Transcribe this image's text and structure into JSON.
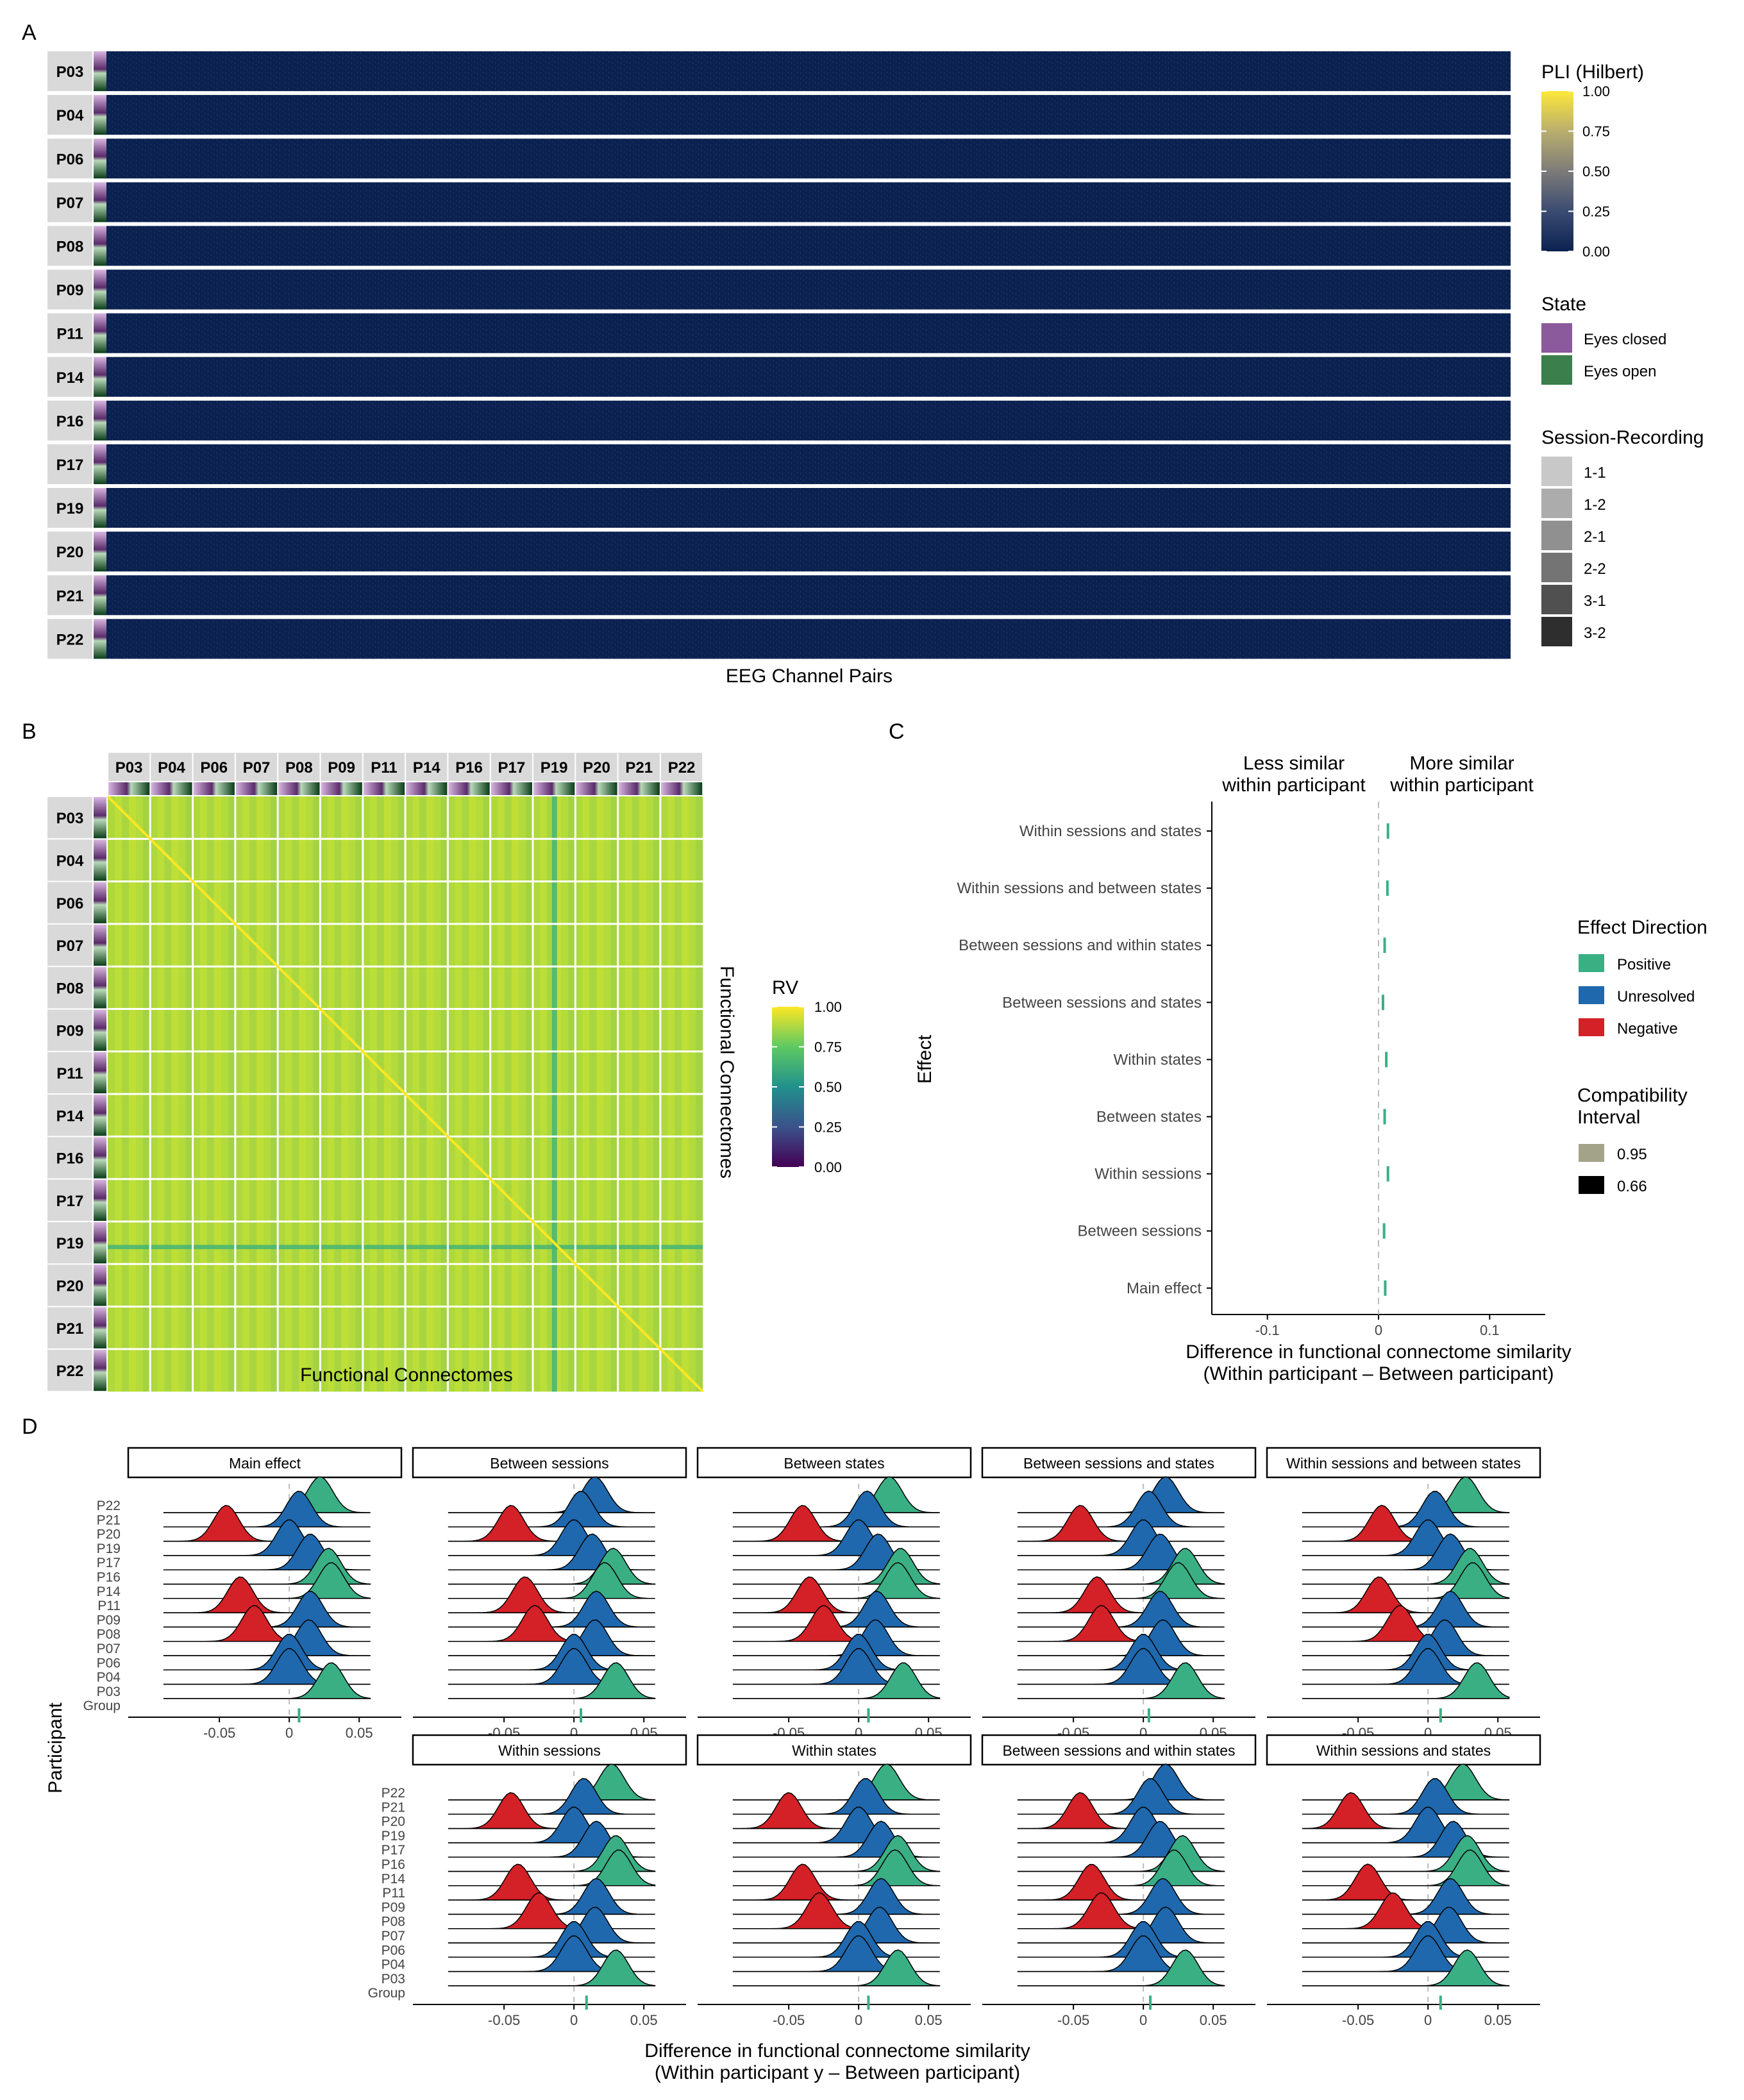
{
  "panel_letters": [
    "A",
    "B",
    "C",
    "D"
  ],
  "participants": [
    "P03",
    "P04",
    "P06",
    "P07",
    "P08",
    "P09",
    "P11",
    "P14",
    "P16",
    "P17",
    "P19",
    "P20",
    "P21",
    "P22"
  ],
  "colors": {
    "pli_low": "#0b2150",
    "eyes_closed": "#8b5a9c",
    "eyes_open": "#3a7f4c",
    "positive": "#3aaf84",
    "unresolved": "#1f68ad",
    "negative": "#d42027",
    "ci95": "#a3a38a",
    "ci66": "#000000",
    "strip_bg": "#d9d9d9"
  },
  "legends": {
    "pli": {
      "title": "PLI (Hilbert)",
      "ticks": [
        "1.00",
        "0.75",
        "0.50",
        "0.25",
        "0.00"
      ]
    },
    "state": {
      "title": "State",
      "items": [
        "Eyes closed",
        "Eyes open"
      ]
    },
    "session": {
      "title": "Session-Recording",
      "items": [
        "1-1",
        "1-2",
        "2-1",
        "2-2",
        "3-1",
        "3-2"
      ],
      "shades": [
        "#c8c8c8",
        "#acacac",
        "#909090",
        "#747474",
        "#505050",
        "#2e2e2e"
      ]
    },
    "rv": {
      "title": "RV",
      "ticks": [
        "1.00",
        "0.75",
        "0.50",
        "0.25",
        "0.00"
      ]
    },
    "direction": {
      "title": "Effect Direction",
      "items": [
        "Positive",
        "Unresolved",
        "Negative"
      ]
    },
    "interval": {
      "title_line1": "Compatibility",
      "title_line2": "Interval",
      "items": [
        "0.95",
        "0.66"
      ]
    }
  },
  "chart_data": [
    {
      "type": "heatmap",
      "panel": "A",
      "xlabel": "EEG Channel Pairs",
      "rows": [
        "P03",
        "P04",
        "P06",
        "P07",
        "P08",
        "P09",
        "P11",
        "P14",
        "P16",
        "P17",
        "P19",
        "P20",
        "P21",
        "P22"
      ],
      "value_range": [
        0,
        1
      ],
      "typical_value": 0.08
    },
    {
      "type": "heatmap",
      "panel": "B",
      "xlabel": "Functional Connectomes",
      "ylabel": "Functional Connectomes",
      "groups": [
        "P03",
        "P04",
        "P06",
        "P07",
        "P08",
        "P09",
        "P11",
        "P14",
        "P16",
        "P17",
        "P19",
        "P20",
        "P21",
        "P22"
      ],
      "value_range": [
        0,
        1
      ],
      "diagonal": 1.0,
      "typical_value": 0.9
    },
    {
      "type": "scatter",
      "panel": "C",
      "ylabel": "Effect",
      "xlabel_line1": "Difference in functional connectome similarity",
      "xlabel_line2": "(Within participant – Between participant)",
      "header_left_line1": "Less similar",
      "header_left_line2": "within participant",
      "header_right_line1": "More similar",
      "header_right_line2": "within participant",
      "xlim": [
        -0.15,
        0.15
      ],
      "xticks": [
        "-0.1",
        "0",
        "0.1"
      ],
      "effects": [
        "Within sessions and states",
        "Within sessions and between states",
        "Between sessions and within states",
        "Between sessions and states",
        "Within states",
        "Between states",
        "Within sessions",
        "Between sessions",
        "Main effect"
      ],
      "estimates": [
        0.0085,
        0.008,
        0.0055,
        0.004,
        0.007,
        0.0055,
        0.0085,
        0.005,
        0.006
      ]
    },
    {
      "type": "area",
      "panel": "D",
      "ylabel": "Participant",
      "xlabel_line1": "Difference in functional connectome similarity",
      "xlabel_line2": "(Within participant y – Between participant)",
      "rows": [
        "P22",
        "P21",
        "P20",
        "P19",
        "P17",
        "P16",
        "P14",
        "P11",
        "P09",
        "P08",
        "P07",
        "P06",
        "P04",
        "P03",
        "Group"
      ],
      "xlim": [
        -0.095,
        0.06
      ],
      "xticks": [
        "-0.05",
        "0",
        "0.05"
      ],
      "facets": [
        {
          "title": "Main effect",
          "group": 0.007,
          "means": [
            0.022,
            0.007,
            -0.045,
            0.0,
            0.015,
            0.028,
            0.03,
            -0.035,
            0.015,
            -0.025,
            0.014,
            0.0,
            0.0,
            0.03
          ]
        },
        {
          "title": "Between sessions",
          "group": 0.005,
          "means": [
            0.015,
            0.005,
            -0.045,
            0.0,
            0.013,
            0.028,
            0.022,
            -0.035,
            0.016,
            -0.028,
            0.015,
            0.0,
            0.0,
            0.03
          ]
        },
        {
          "title": "Between states",
          "group": 0.007,
          "means": [
            0.022,
            0.006,
            -0.04,
            0.0,
            0.014,
            0.03,
            0.028,
            -0.035,
            0.013,
            -0.025,
            0.012,
            0.0,
            0.0,
            0.032
          ]
        },
        {
          "title": "Between sessions and states",
          "group": 0.004,
          "means": [
            0.016,
            0.004,
            -0.045,
            0.0,
            0.012,
            0.03,
            0.025,
            -0.033,
            0.012,
            -0.03,
            0.014,
            0.0,
            0.0,
            0.03
          ]
        },
        {
          "title": "Within sessions and between states",
          "group": 0.009,
          "means": [
            0.027,
            0.005,
            -0.033,
            0.0,
            0.016,
            0.03,
            0.032,
            -0.035,
            0.016,
            -0.02,
            0.012,
            0.0,
            0.0,
            0.035
          ]
        },
        {
          "title": "Within sessions",
          "group": 0.009,
          "means": [
            0.027,
            0.007,
            -0.045,
            0.0,
            0.016,
            0.03,
            0.032,
            -0.04,
            0.016,
            -0.025,
            0.015,
            0.0,
            0.0,
            0.03
          ]
        },
        {
          "title": "Within states",
          "group": 0.007,
          "means": [
            0.02,
            0.005,
            -0.05,
            0.0,
            0.016,
            0.028,
            0.026,
            -0.04,
            0.016,
            -0.028,
            0.015,
            0.0,
            0.0,
            0.028
          ]
        },
        {
          "title": "Between sessions and within states",
          "group": 0.005,
          "means": [
            0.016,
            0.005,
            -0.045,
            0.0,
            0.012,
            0.028,
            0.022,
            -0.037,
            0.014,
            -0.03,
            0.016,
            0.0,
            0.0,
            0.03
          ]
        },
        {
          "title": "Within sessions and states",
          "group": 0.009,
          "means": [
            0.025,
            0.005,
            -0.055,
            0.0,
            0.018,
            0.028,
            0.03,
            -0.043,
            0.016,
            -0.025,
            0.015,
            0.0,
            0.0,
            0.028
          ]
        }
      ]
    }
  ]
}
